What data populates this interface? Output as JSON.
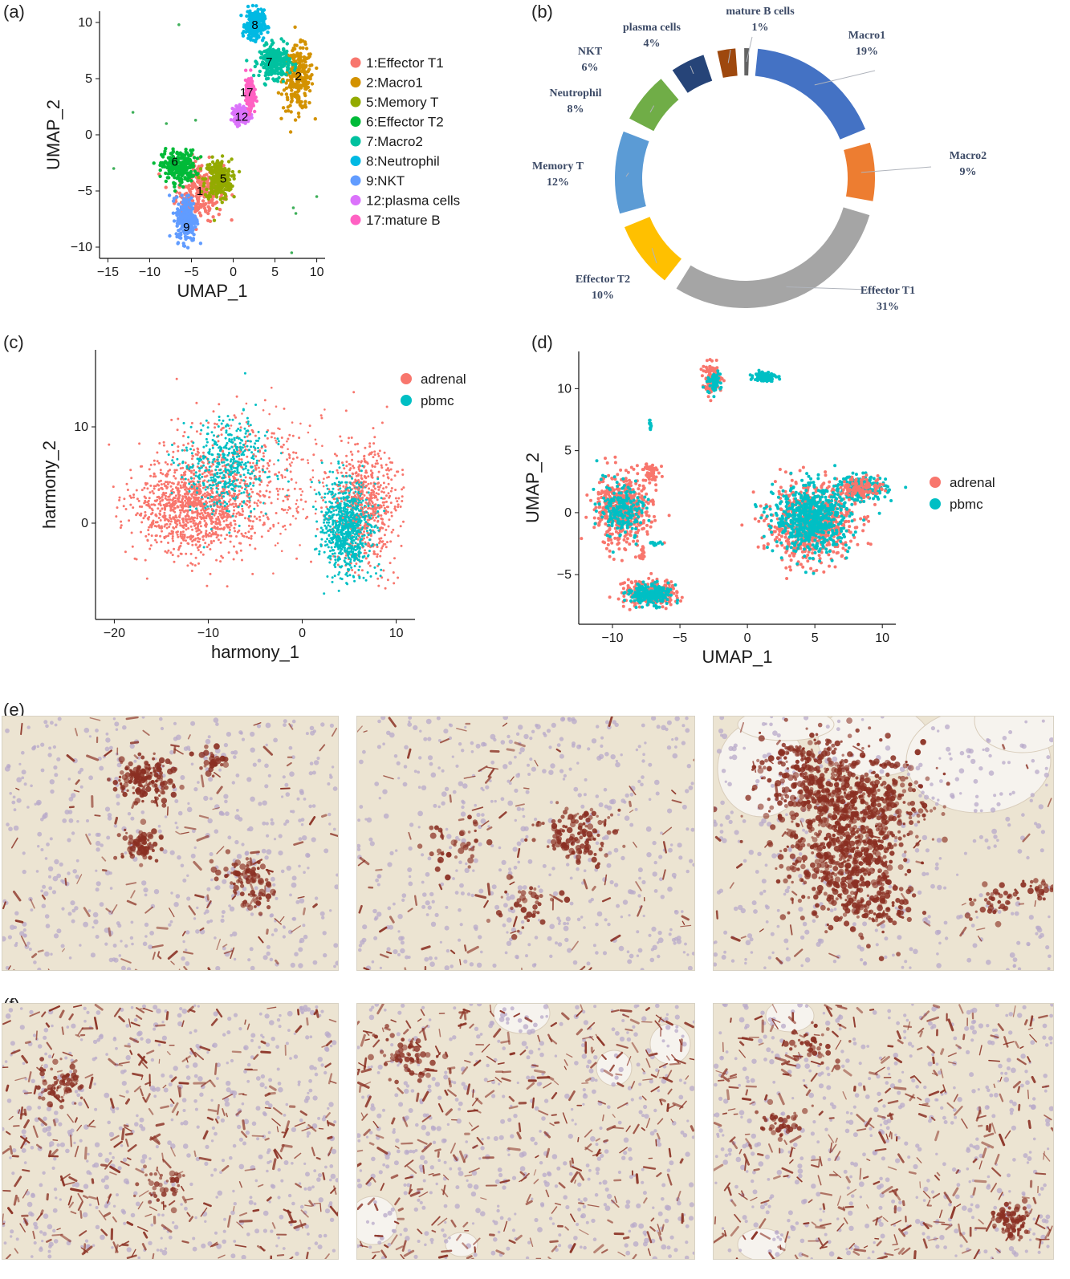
{
  "panels": {
    "a": "(a)",
    "b": "(b)",
    "c": "(c)",
    "d": "(d)",
    "e": "(e)",
    "f": "(f)"
  },
  "chart_data": [
    {
      "id": "a",
      "type": "scatter",
      "xlabel": "UMAP_1",
      "ylabel": "UMAP_2",
      "xlim": [
        -16,
        11
      ],
      "ylim": [
        -11,
        11
      ],
      "xticks": [
        -15,
        -10,
        -5,
        0,
        5,
        10
      ],
      "yticks": [
        -10,
        -5,
        0,
        5,
        10
      ],
      "legend_position": "right",
      "series": [
        {
          "name": "1:Effector T1",
          "color": "#F8766D",
          "label": "1",
          "center": [
            -4.0,
            -5.0
          ],
          "spread": [
            1.4,
            1.3
          ],
          "label_pos": [
            -4.0,
            -5.0
          ]
        },
        {
          "name": "2:Macro1",
          "color": "#D39200",
          "label": "2",
          "center": [
            7.8,
            5.0
          ],
          "spread": [
            0.9,
            1.4
          ],
          "label_pos": [
            7.8,
            5.2
          ]
        },
        {
          "name": "5:Memory T",
          "color": "#93AA00",
          "label": "5",
          "center": [
            -1.8,
            -4.0
          ],
          "spread": [
            0.8,
            0.9
          ],
          "label_pos": [
            -1.2,
            -3.9
          ]
        },
        {
          "name": "6:Effector T2",
          "color": "#00BA38",
          "label": "6",
          "center": [
            -6.5,
            -2.8
          ],
          "spread": [
            1.0,
            0.7
          ],
          "label_pos": [
            -7.0,
            -2.4
          ]
        },
        {
          "name": "7:Macro2",
          "color": "#00C19F",
          "label": "7",
          "center": [
            5.0,
            6.5
          ],
          "spread": [
            0.9,
            0.7
          ],
          "label_pos": [
            4.3,
            6.5
          ]
        },
        {
          "name": "8:Neutrophil",
          "color": "#00B9E3",
          "label": "8",
          "center": [
            2.6,
            9.8
          ],
          "spread": [
            0.55,
            0.65
          ],
          "label_pos": [
            2.6,
            9.8
          ]
        },
        {
          "name": "9:NKT",
          "color": "#619CFF",
          "label": "9",
          "center": [
            -5.6,
            -7.5
          ],
          "spread": [
            0.6,
            1.0
          ],
          "label_pos": [
            -5.6,
            -8.2
          ]
        },
        {
          "name": "12:plasma cells",
          "color": "#DB72FB",
          "label": "12",
          "center": [
            1.0,
            1.8
          ],
          "spread": [
            0.45,
            0.35
          ],
          "label_pos": [
            1.0,
            1.6
          ]
        },
        {
          "name": "17:mature B",
          "color": "#FF61C3",
          "label": "17",
          "center": [
            2.0,
            3.6
          ],
          "spread": [
            0.25,
            0.6
          ],
          "label_pos": [
            1.6,
            3.8
          ]
        }
      ]
    },
    {
      "id": "b",
      "type": "pie",
      "style": "donut",
      "slices": [
        {
          "name": "Macro1",
          "value": 19,
          "label": "19%",
          "color": "#4472C4"
        },
        {
          "name": "Macro2",
          "value": 9,
          "label": "9%",
          "color": "#ED7D31"
        },
        {
          "name": "Effector T1",
          "value": 31,
          "label": "31%",
          "color": "#A5A5A5"
        },
        {
          "name": "Effector T2",
          "value": 10,
          "label": "10%",
          "color": "#FFC000"
        },
        {
          "name": "Memory T",
          "value": 12,
          "label": "12%",
          "color": "#5B9BD5"
        },
        {
          "name": "Neutrophil",
          "value": 8,
          "label": "8%",
          "color": "#70AD47"
        },
        {
          "name": "NKT",
          "value": 6,
          "label": "6%",
          "color": "#264478"
        },
        {
          "name": "plasma cells",
          "value": 4,
          "label": "4%",
          "color": "#9E480E"
        },
        {
          "name": "mature B cells",
          "value": 1,
          "label": "1%",
          "color": "#636363"
        }
      ]
    },
    {
      "id": "c",
      "type": "scatter",
      "xlabel": "harmony_1",
      "ylabel": "harmony_2",
      "xlim": [
        -22,
        12
      ],
      "ylim": [
        -10,
        18
      ],
      "xticks": [
        -20,
        -10,
        0,
        10
      ],
      "yticks": [
        0,
        10
      ],
      "legend_position": "top-right",
      "series": [
        {
          "name": "adrenal",
          "color": "#F8766D"
        },
        {
          "name": "pbmc",
          "color": "#00BFC4"
        }
      ]
    },
    {
      "id": "d",
      "type": "scatter",
      "xlabel": "UMAP_1",
      "ylabel": "UMAP_2",
      "xlim": [
        -12.5,
        11
      ],
      "ylim": [
        -9,
        13
      ],
      "xticks": [
        -10,
        -5,
        0,
        5,
        10
      ],
      "yticks": [
        -5,
        0,
        5,
        10
      ],
      "legend_position": "right",
      "series": [
        {
          "name": "adrenal",
          "color": "#F8766D"
        },
        {
          "name": "pbmc",
          "color": "#00BFC4"
        }
      ]
    }
  ],
  "donut_labels": [
    {
      "name": "Macro1",
      "pct": "19%"
    },
    {
      "name": "Macro2",
      "pct": "9%"
    },
    {
      "name": "Effector T1",
      "pct": "31%"
    },
    {
      "name": "Effector T2",
      "pct": "10%"
    },
    {
      "name": "Memory T",
      "pct": "12%"
    },
    {
      "name": "Neutrophil",
      "pct": "8%"
    },
    {
      "name": "NKT",
      "pct": "6%"
    },
    {
      "name": "plasma cells",
      "pct": "4%"
    },
    {
      "name": "mature B cells",
      "pct": "1%"
    }
  ],
  "colors": {
    "tissue_bg": "#ece4d2",
    "nuclei": "#b8a9c9",
    "stain": "#8a2f22"
  }
}
